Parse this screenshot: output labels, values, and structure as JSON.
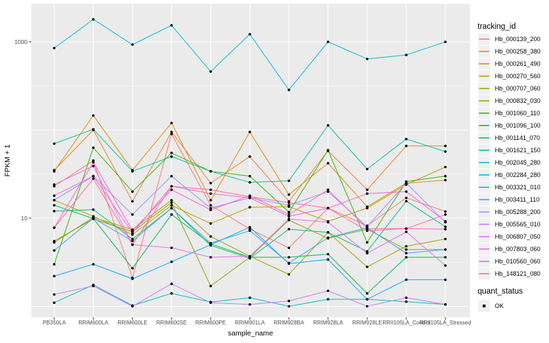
{
  "figure": {
    "panel_bg": "#EBEBEB",
    "grid_color": "#FFFFFF",
    "point_color": "#000000",
    "tick_mark_color": "#333333",
    "tick_label_color": "#4D4D4D"
  },
  "axes": {
    "x_title": "sample_name",
    "y_title": "FPKM + 1",
    "y_tick_labels": [
      "1000",
      "10"
    ]
  },
  "legend": {
    "tracking_title": "tracking_id",
    "quant_title": "quant_status",
    "quant_items": [
      {
        "label": "OK",
        "marker_color": "#000000"
      }
    ]
  },
  "chart_data": {
    "type": "line",
    "title": "",
    "xlabel": "sample_name",
    "ylabel": "FPKM + 1",
    "y_scale": "log10",
    "ylim": [
      1,
      2000
    ],
    "grid": true,
    "legend_position": "right",
    "point_marker": "small-black-dot",
    "y_ticks": [
      {
        "value": 1000,
        "label": "1000"
      },
      {
        "value": 10,
        "label": "10"
      }
    ],
    "y_gridlines_major": [
      1,
      10,
      100,
      1000
    ],
    "y_gridlines_minor": [
      3.162,
      31.62,
      316.2
    ],
    "categories": [
      "PB350LA",
      "RRIM600LA",
      "RRIM600LE",
      "RRIM600SE",
      "RRIM600PE",
      "RRIM901LA",
      "RRIM928BA",
      "RRIM928LA",
      "RRIM928LE",
      "RRII105LA_Control",
      "RRII105LA_Stressed"
    ],
    "series": [
      {
        "name": "Hb_000139_200",
        "color": "#F8766D",
        "values": [
          23,
          45,
          2.1,
          90,
          14,
          7.5,
          4.6,
          13,
          8.2,
          17,
          11.9
        ]
      },
      {
        "name": "Hb_000258_380",
        "color": "#EA8331",
        "values": [
          35,
          100,
          15.5,
          95,
          25,
          50,
          15.5,
          58,
          21,
          66,
          66
        ]
      },
      {
        "name": "Hb_000261_490",
        "color": "#D89000",
        "values": [
          34,
          146,
          35,
          120,
          16,
          95,
          18.5,
          42,
          13.5,
          25,
          27
        ]
      },
      {
        "name": "Hb_000270_560",
        "color": "#C09B00",
        "values": [
          16,
          10.5,
          6.5,
          14,
          8.7,
          13.3,
          13.5,
          9.2,
          13,
          24,
          38
        ]
      },
      {
        "name": "Hb_000707_060",
        "color": "#A3A500",
        "values": [
          5.3,
          10.2,
          7.4,
          16,
          6.2,
          3.7,
          2.3,
          6.9,
          2.8,
          4.8,
          5.8
        ]
      },
      {
        "name": "Hb_000832_030",
        "color": "#7CAE00",
        "values": [
          5.5,
          9.8,
          7.0,
          15,
          1.7,
          3.6,
          9.5,
          5.9,
          7.5,
          4.4,
          4.4
        ]
      },
      {
        "name": "Hb_001060_110",
        "color": "#39B600",
        "values": [
          3.0,
          63,
          20,
          55,
          34,
          30,
          11.7,
          59,
          5.3,
          26,
          30
        ]
      },
      {
        "name": "Hb_001096_100",
        "color": "#00BB4E",
        "values": [
          14,
          9.9,
          2.7,
          11,
          5.1,
          3.6,
          3.6,
          3.9,
          1.4,
          3.6,
          3.6
        ]
      },
      {
        "name": "Hb_001141_070",
        "color": "#00BF7D",
        "values": [
          12,
          12.5,
          5.8,
          13,
          4.9,
          3.5,
          7.5,
          6.9,
          4.2,
          15.6,
          8.0
        ]
      },
      {
        "name": "Hb_001621_150",
        "color": "#00C1A3",
        "values": [
          70,
          102,
          34,
          50,
          34,
          25.5,
          26.5,
          113,
          36,
          79,
          57
        ]
      },
      {
        "name": "Hb_002045_280",
        "color": "#00BFC4",
        "values": [
          1.1,
          1.75,
          1.02,
          1.4,
          1.12,
          1.25,
          1.0,
          1.2,
          1.2,
          1.13,
          1.05
        ]
      },
      {
        "name": "Hb_002284_280",
        "color": "#00BAE0",
        "values": [
          850,
          1800,
          930,
          1540,
          460,
          1220,
          285,
          1000,
          640,
          710,
          1000
        ]
      },
      {
        "name": "Hb_003321_010",
        "color": "#00B0F6",
        "values": [
          2.2,
          3.0,
          2.05,
          3.2,
          5.0,
          7.9,
          3.05,
          3.4,
          1.2,
          2.0,
          2.0
        ]
      },
      {
        "name": "Hb_003411_110",
        "color": "#35A2FF",
        "values": [
          4.3,
          10.0,
          5.5,
          13,
          5.2,
          7.2,
          3.1,
          6.0,
          7.8,
          4.0,
          4.4
        ]
      },
      {
        "name": "Hb_005288_200",
        "color": "#9590FF",
        "values": [
          16,
          30,
          11,
          30,
          13,
          17,
          14,
          20,
          8.0,
          25,
          9.0
        ]
      },
      {
        "name": "Hb_005565_010",
        "color": "#C77CFF",
        "values": [
          1.36,
          1.7,
          1.0,
          1.8,
          1.1,
          1.05,
          1.15,
          1.5,
          1.0,
          1.25,
          1.05
        ]
      },
      {
        "name": "Hb_006807_050",
        "color": "#E76BF3",
        "values": [
          24,
          39,
          5.0,
          4.6,
          3.6,
          3.7,
          9.8,
          9.0,
          4.0,
          7.0,
          2.9
        ]
      },
      {
        "name": "Hb_007803_060",
        "color": "#FA62DB",
        "values": [
          18,
          30,
          6.8,
          23,
          19,
          17,
          10.5,
          13,
          19,
          20,
          9.2
        ]
      },
      {
        "name": "Hb_010560_060",
        "color": "#FF61C9",
        "values": [
          7.8,
          43,
          7.2,
          21,
          12.4,
          18,
          11,
          21,
          7.6,
          7.6,
          7.5
        ]
      },
      {
        "name": "Hb_148121_080",
        "color": "#FF689F",
        "values": [
          7.8,
          28,
          5.0,
          23,
          21,
          17.5,
          15,
          13,
          7.2,
          7.6,
          11
        ]
      }
    ]
  }
}
